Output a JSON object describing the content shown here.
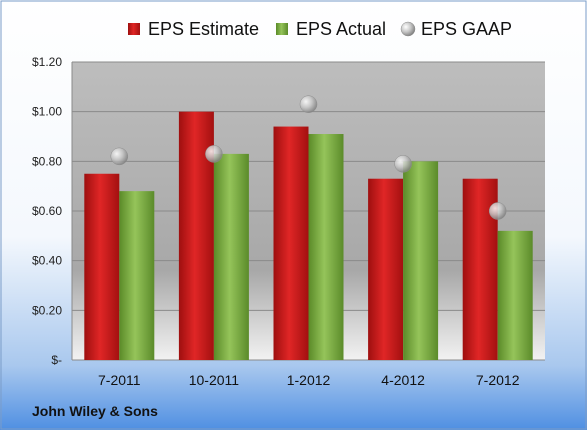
{
  "company": "John Wiley & Sons",
  "colors": {
    "estimate": "#cc1a1a",
    "actual": "#7aab3a",
    "gaap": "#aaaaaa"
  },
  "chart_data": {
    "type": "bar",
    "categories": [
      "7-2011",
      "10-2011",
      "1-2012",
      "4-2012",
      "7-2012"
    ],
    "series": [
      {
        "name": "EPS Estimate",
        "kind": "bar",
        "values": [
          0.75,
          1.0,
          0.94,
          0.73,
          0.73
        ]
      },
      {
        "name": "EPS Actual",
        "kind": "bar",
        "values": [
          0.68,
          0.83,
          0.91,
          0.8,
          0.52
        ]
      },
      {
        "name": "EPS GAAP",
        "kind": "marker",
        "values": [
          0.82,
          0.83,
          1.03,
          0.79,
          0.6
        ]
      }
    ],
    "yticks": [
      "$-",
      "$0.20",
      "$0.40",
      "$0.60",
      "$0.80",
      "$1.00",
      "$1.20"
    ],
    "ylim": [
      0,
      1.2
    ],
    "grid": true,
    "legend": "top"
  }
}
